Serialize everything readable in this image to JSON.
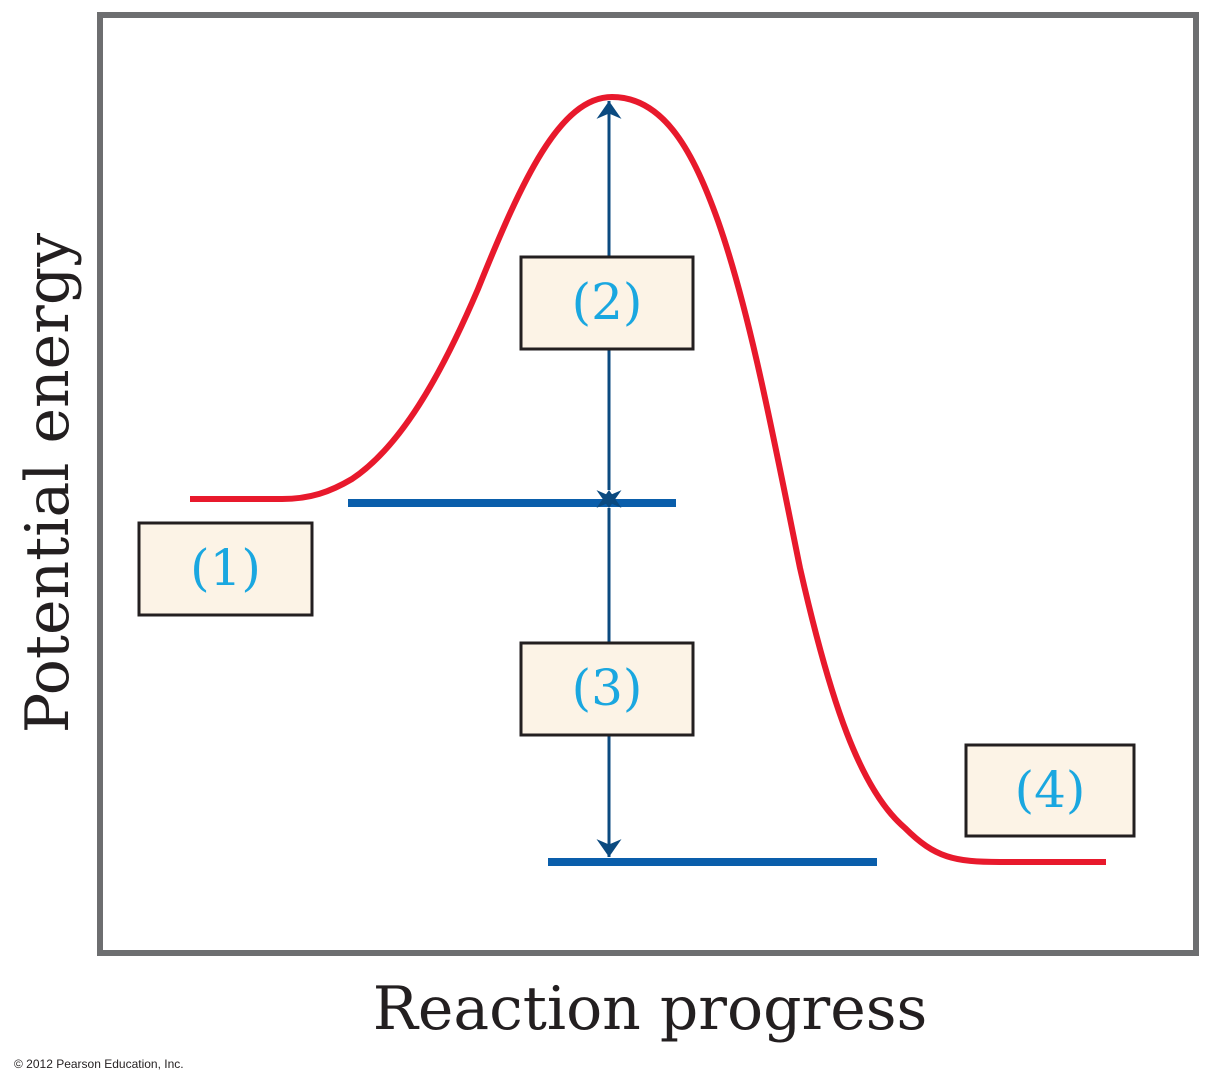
{
  "diagram": {
    "x_axis_label": "Reaction progress",
    "y_axis_label": "Potential energy",
    "labels": {
      "box_1": "(1)",
      "box_2": "(2)",
      "box_3": "(3)",
      "box_4": "(4)"
    },
    "copyright": "© 2012 Pearson Education, Inc."
  },
  "colors": {
    "frame": "#6d6e70",
    "curve": "#e8192c",
    "level_line": "#0a5eab",
    "arrow": "#0b4a80",
    "label_text": "#1aa7e0",
    "box_fill": "#fcf3e6",
    "box_border": "#231f20"
  }
}
